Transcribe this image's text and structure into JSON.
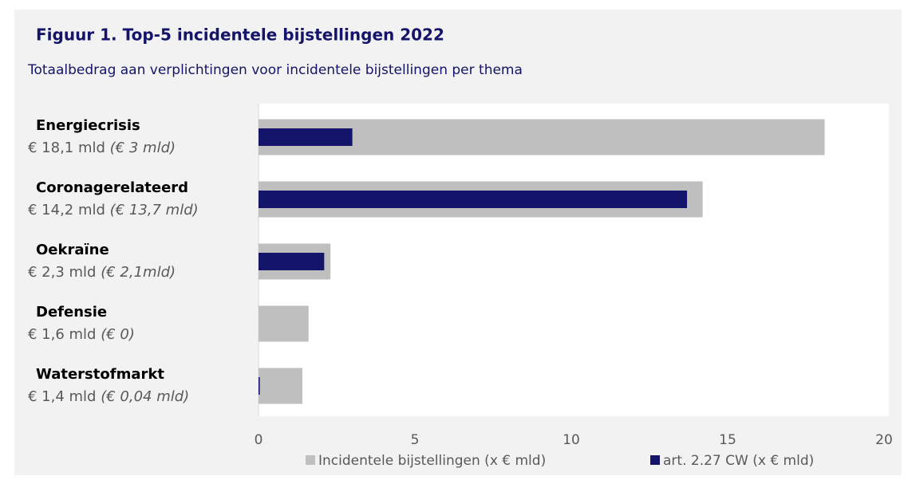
{
  "chart_data": {
    "type": "bar",
    "orientation": "horizontal",
    "title": "Figuur 1. Top-5 incidentele bijstellingen 2022",
    "subtitle": "Totaalbedrag aan verplichtingen voor incidentele bijstellingen per thema",
    "categories": [
      "Energiecrisis",
      "Coronagerelateerd",
      "Oekraïne",
      "Defensie",
      "Waterstofmarkt"
    ],
    "series": [
      {
        "name": "Incidentele bijstellingen (x € mld)",
        "color": "#bfbfbf",
        "values": [
          18.1,
          14.2,
          2.3,
          1.6,
          1.4
        ],
        "value_labels": [
          "€ 18,1 mld",
          "€ 14,2 mld",
          "€ 2,3 mld",
          "€ 1,6 mld",
          "€ 1,4 mld"
        ]
      },
      {
        "name": "art. 2.27 CW (x € mld)",
        "color": "#14146b",
        "values": [
          3,
          13.7,
          2.1,
          0,
          0.04
        ],
        "value_labels": [
          "(€ 3 mld)",
          "(€ 13,7 mld)",
          "(€ 2,1mld)",
          "(€ 0)",
          "(€ 0,04 mld)"
        ]
      }
    ],
    "xlim": [
      0,
      20
    ],
    "xticks": [
      0,
      5,
      10,
      15,
      20
    ],
    "grid": false,
    "legend": "bottom"
  }
}
